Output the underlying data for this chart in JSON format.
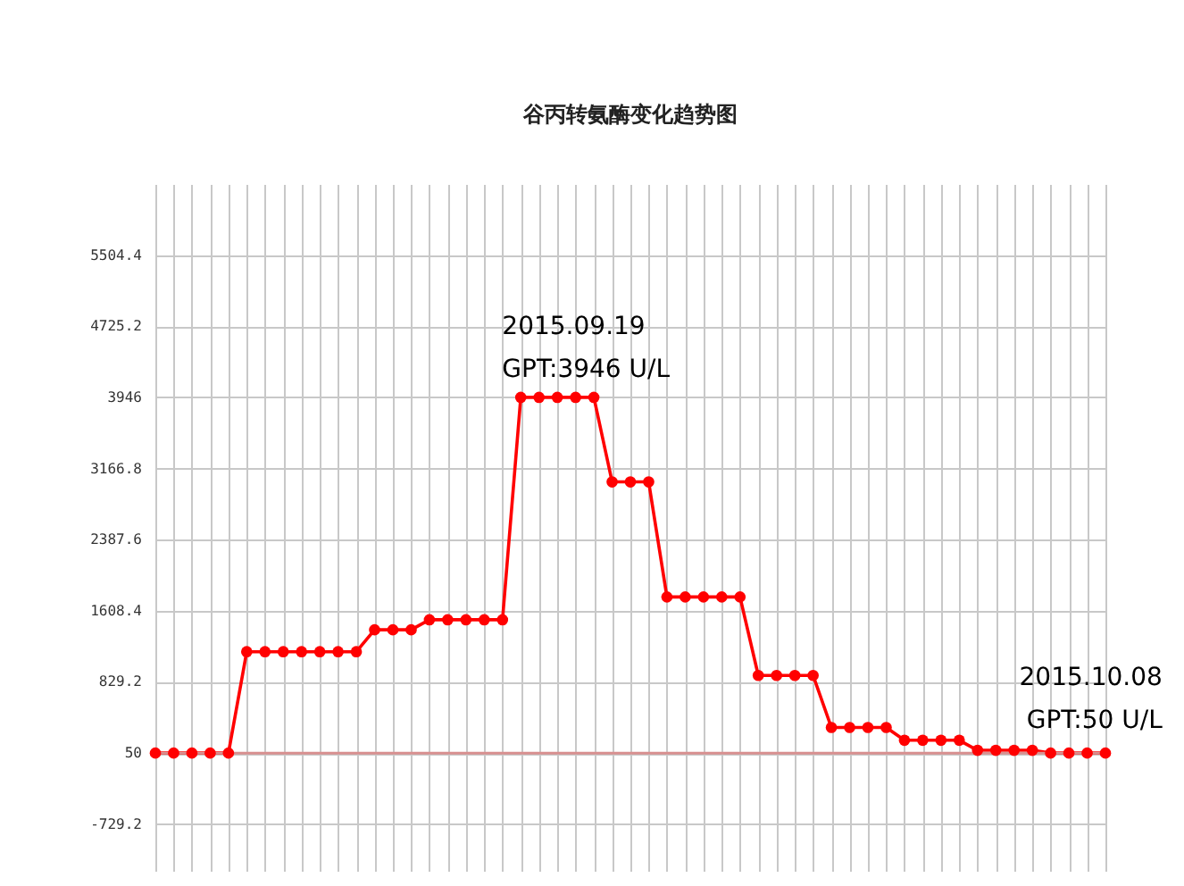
{
  "chart_data": {
    "type": "line",
    "title": "谷丙转氨酶变化趋势图",
    "categories": [
      null,
      null,
      null,
      null,
      null,
      null,
      null,
      null,
      null,
      null,
      null,
      null,
      null,
      null,
      null,
      null,
      null,
      null,
      null,
      null,
      null,
      null,
      null,
      null,
      null,
      null,
      null,
      null,
      null,
      null,
      null,
      null,
      null,
      null,
      null,
      null,
      null,
      null,
      null,
      null,
      null,
      null,
      null,
      null,
      null,
      null,
      null,
      null,
      null,
      null,
      null,
      null,
      null
    ],
    "series": [
      {
        "color": "#ff0000",
        "values": [
          50,
          50,
          50,
          50,
          50,
          1160,
          1160,
          1160,
          1160,
          1160,
          1160,
          1160,
          1400,
          1400,
          1400,
          1510,
          1510,
          1510,
          1510,
          1510,
          3946,
          3946,
          3946,
          3946,
          3946,
          3020,
          3020,
          3020,
          1760,
          1760,
          1760,
          1760,
          1760,
          900,
          900,
          900,
          900,
          330,
          330,
          330,
          330,
          190,
          190,
          190,
          190,
          80,
          80,
          80,
          80,
          50,
          50,
          50,
          50
        ]
      }
    ],
    "ylim": [
      -1250,
      6283.6
    ],
    "yticks": [
      -729.2,
      50,
      829.2,
      1608.4,
      2387.6,
      3166.8,
      3946,
      4725.2,
      5504.4
    ],
    "ref_lines": [
      {
        "axis": "y",
        "value": 50,
        "color": "#d89090"
      }
    ],
    "annotations": [
      "2015.09.19\nGPT:3946 U/L",
      "2015.10.08\nGPT:50 U/L"
    ],
    "grid": true,
    "marker": "circle",
    "line_style": "solid"
  }
}
